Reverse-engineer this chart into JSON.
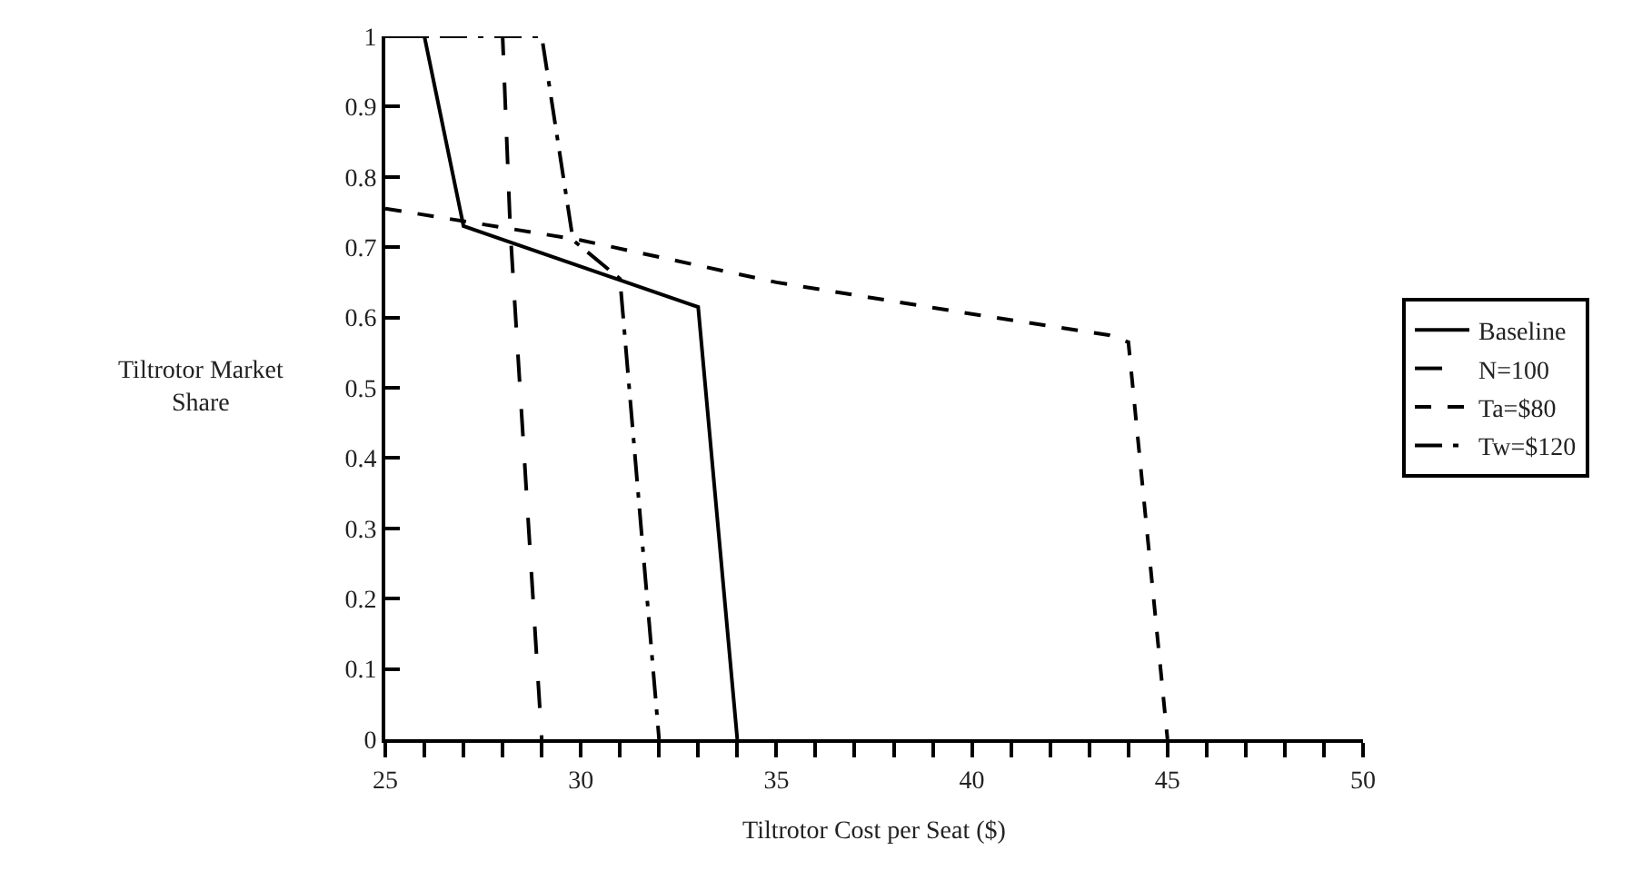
{
  "chart_data": {
    "type": "line",
    "xlabel": "Tiltrotor Cost per Seat ($)",
    "ylabel": "Tiltrotor Market Share",
    "series": [
      {
        "name": "Baseline",
        "color": "#000000",
        "line_style": "solid",
        "x": [
          25,
          26,
          27,
          33,
          34
        ],
        "values": [
          1,
          1,
          0.73,
          0.615,
          0
        ]
      },
      {
        "name": "N=100",
        "color": "#000000",
        "line_style": "dashed",
        "x": [
          25,
          28,
          28.2,
          29
        ],
        "values": [
          1,
          1,
          0.72,
          0
        ]
      },
      {
        "name": "Ta=$80",
        "color": "#000000",
        "line_style": "dotted",
        "x": [
          25,
          30,
          35,
          40,
          43.5,
          44,
          45
        ],
        "values": [
          0.755,
          0.71,
          0.65,
          0.605,
          0.575,
          0.565,
          0
        ]
      },
      {
        "name": "Tw=$120",
        "color": "#000000",
        "line_style": "dashdot",
        "x": [
          25,
          29,
          29.8,
          31,
          32
        ],
        "values": [
          1,
          1,
          0.71,
          0.655,
          0
        ]
      }
    ],
    "xlim": [
      25,
      50
    ],
    "ylim": [
      0,
      1
    ],
    "xticks": [
      25,
      {
        "value": 26,
        "label": null
      },
      {
        "value": 27,
        "label": null
      },
      {
        "value": 28,
        "label": null
      },
      {
        "value": 29,
        "label": null
      },
      30,
      {
        "value": 31,
        "label": null
      },
      {
        "value": 32,
        "label": null
      },
      {
        "value": 33,
        "label": null
      },
      {
        "value": 34,
        "label": null
      },
      35,
      {
        "value": 36,
        "label": null
      },
      {
        "value": 37,
        "label": null
      },
      {
        "value": 38,
        "label": null
      },
      {
        "value": 39,
        "label": null
      },
      40,
      {
        "value": 41,
        "label": null
      },
      {
        "value": 42,
        "label": null
      },
      {
        "value": 43,
        "label": null
      },
      {
        "value": 44,
        "label": null
      },
      45,
      {
        "value": 46,
        "label": null
      },
      {
        "value": 47,
        "label": null
      },
      {
        "value": 48,
        "label": null
      },
      {
        "value": 49,
        "label": null
      },
      50
    ],
    "yticks": [
      0,
      0.1,
      0.2,
      0.3,
      0.4,
      0.5,
      0.6,
      0.7,
      0.8,
      0.9,
      1
    ],
    "legend": "right",
    "marker": "none"
  }
}
